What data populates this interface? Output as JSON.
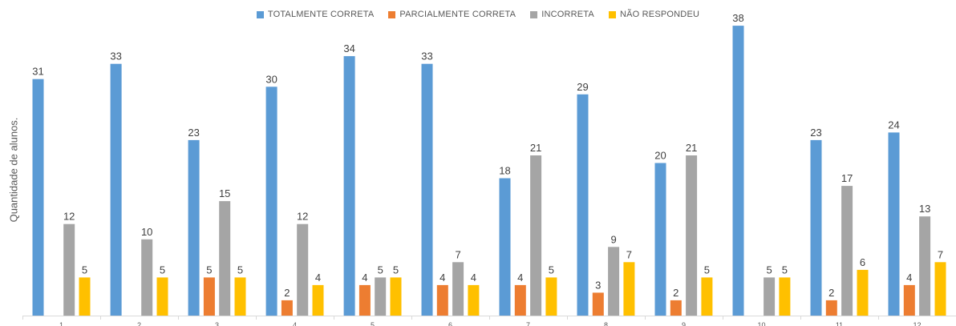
{
  "chart_data": {
    "type": "bar",
    "ylabel": "Quantidade de alunos.",
    "categories": [
      "1",
      "2",
      "3",
      "4",
      "5",
      "6",
      "7",
      "8",
      "9",
      "10",
      "11",
      "12"
    ],
    "series": [
      {
        "name": "TOTALMENTE CORRETA",
        "color": "#5B9BD5",
        "values": [
          31,
          33,
          23,
          30,
          34,
          33,
          18,
          29,
          20,
          38,
          23,
          24
        ]
      },
      {
        "name": "PARCIALMENTE CORRETA",
        "color": "#ED7D31",
        "values": [
          null,
          null,
          5,
          2,
          4,
          4,
          4,
          3,
          2,
          null,
          2,
          4
        ]
      },
      {
        "name": "INCORRETA",
        "color": "#A5A5A5",
        "values": [
          12,
          10,
          15,
          12,
          5,
          7,
          21,
          9,
          21,
          5,
          17,
          13
        ]
      },
      {
        "name": "NÃO RESPONDEU",
        "color": "#FFC000",
        "values": [
          5,
          5,
          5,
          4,
          5,
          4,
          5,
          7,
          5,
          5,
          6,
          7
        ]
      }
    ],
    "ylim": [
      0,
      40
    ],
    "grid": false,
    "legend_position": "top"
  }
}
